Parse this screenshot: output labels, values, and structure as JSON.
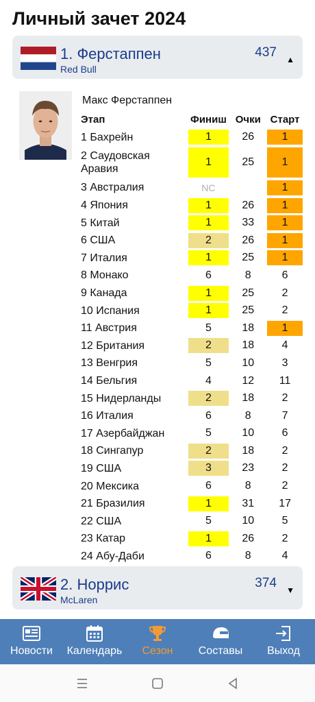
{
  "page_title": "Личный зачет 2024",
  "drivers": [
    {
      "name": "1. Ферстаппен",
      "team": "Red Bull",
      "points": "437",
      "flag_colors": [
        "#ae1c28",
        "#ffffff",
        "#21468b"
      ],
      "expanded": true
    },
    {
      "name": "2. Норрис",
      "team": "McLaren",
      "points": "374",
      "flag_colors": [
        "#012169",
        "#ffffff",
        "#c8102e"
      ],
      "expanded": false
    }
  ],
  "detail": {
    "full_name": "Макс Ферстаппен",
    "headers": {
      "stage": "Этап",
      "finish": "Финиш",
      "points": "Очки",
      "start": "Старт"
    },
    "rows": [
      {
        "stage": "1 Бахрейн",
        "finish": "1",
        "points": "26",
        "start": "1"
      },
      {
        "stage": "2 Саудовская Аравия",
        "finish": "1",
        "points": "25",
        "start": "1"
      },
      {
        "stage": "3 Австралия",
        "finish": "NC",
        "points": "",
        "start": "1"
      },
      {
        "stage": "4 Япония",
        "finish": "1",
        "points": "26",
        "start": "1"
      },
      {
        "stage": "5 Китай",
        "finish": "1",
        "points": "33",
        "start": "1"
      },
      {
        "stage": "6 США",
        "finish": "2",
        "points": "26",
        "start": "1"
      },
      {
        "stage": "7 Италия",
        "finish": "1",
        "points": "25",
        "start": "1"
      },
      {
        "stage": "8 Монако",
        "finish": "6",
        "points": "8",
        "start": "6"
      },
      {
        "stage": "9 Канада",
        "finish": "1",
        "points": "25",
        "start": "2"
      },
      {
        "stage": "10 Испания",
        "finish": "1",
        "points": "25",
        "start": "2"
      },
      {
        "stage": "11 Австрия",
        "finish": "5",
        "points": "18",
        "start": "1"
      },
      {
        "stage": "12 Британия",
        "finish": "2",
        "points": "18",
        "start": "4"
      },
      {
        "stage": "13 Венгрия",
        "finish": "5",
        "points": "10",
        "start": "3"
      },
      {
        "stage": "14 Бельгия",
        "finish": "4",
        "points": "12",
        "start": "11"
      },
      {
        "stage": "15 Нидерланды",
        "finish": "2",
        "points": "18",
        "start": "2"
      },
      {
        "stage": "16 Италия",
        "finish": "6",
        "points": "8",
        "start": "7"
      },
      {
        "stage": "17 Азербайджан",
        "finish": "5",
        "points": "10",
        "start": "6"
      },
      {
        "stage": "18 Сингапур",
        "finish": "2",
        "points": "18",
        "start": "2"
      },
      {
        "stage": "19 США",
        "finish": "3",
        "points": "23",
        "start": "2"
      },
      {
        "stage": "20 Мексика",
        "finish": "6",
        "points": "8",
        "start": "2"
      },
      {
        "stage": "21 Бразилия",
        "finish": "1",
        "points": "31",
        "start": "17"
      },
      {
        "stage": "22 США",
        "finish": "5",
        "points": "10",
        "start": "5"
      },
      {
        "stage": "23 Катар",
        "finish": "1",
        "points": "26",
        "start": "2"
      },
      {
        "stage": "24 Абу-Даби",
        "finish": "6",
        "points": "8",
        "start": "4"
      }
    ]
  },
  "colors": {
    "win": "#ffff00",
    "podium": "#efdf8a",
    "pole": "#ffa500",
    "nc": "#b0b0b0",
    "tabbar": "#4e7fb8",
    "active_tab": "#f39a35",
    "header_bg": "#e9ecef",
    "accent_text": "#1a3c8c"
  },
  "tabs": [
    {
      "label": "Новости",
      "icon": "news-icon",
      "active": false
    },
    {
      "label": "Календарь",
      "icon": "calendar-icon",
      "active": false
    },
    {
      "label": "Сезон",
      "icon": "trophy-icon",
      "active": true
    },
    {
      "label": "Составы",
      "icon": "helmet-icon",
      "active": false
    },
    {
      "label": "Выход",
      "icon": "exit-icon",
      "active": false
    }
  ],
  "system_nav": [
    "menu-icon",
    "home-icon",
    "back-icon"
  ]
}
